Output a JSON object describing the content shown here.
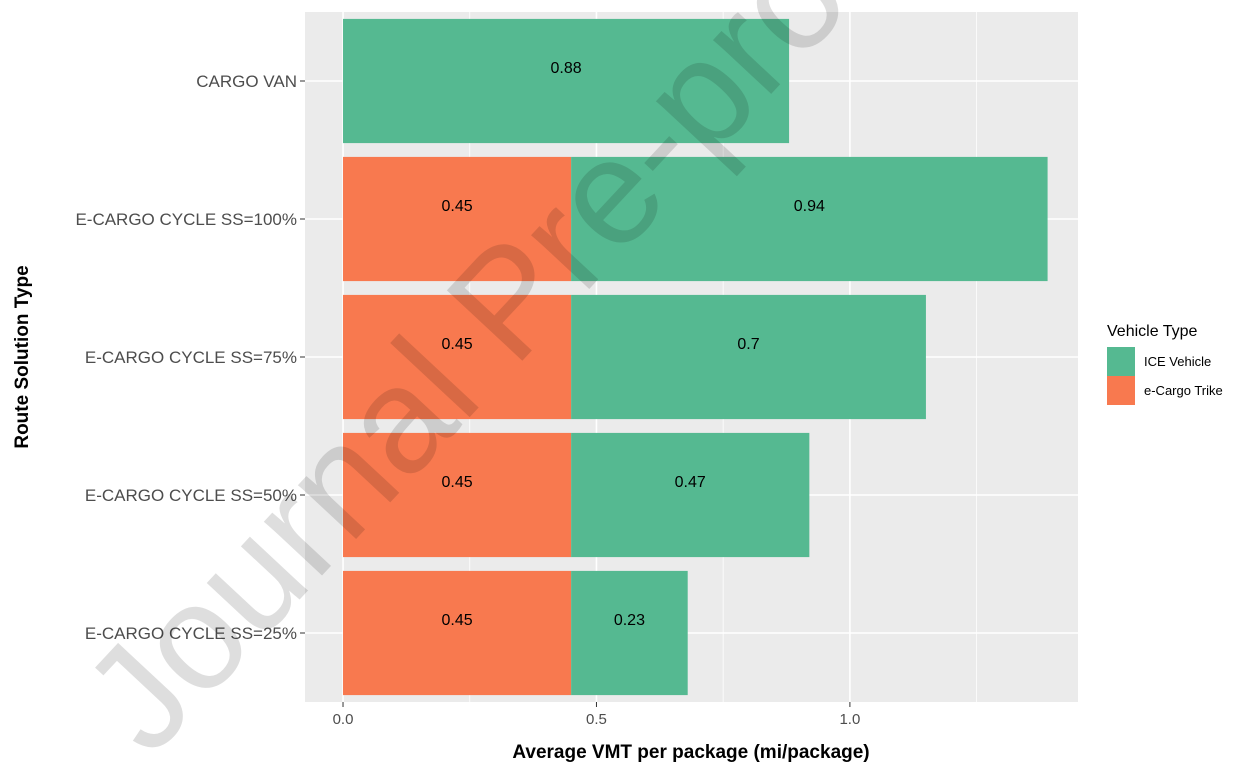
{
  "chart_data": {
    "type": "bar",
    "orientation": "horizontal",
    "stacked": true,
    "categories": [
      "CARGO VAN",
      "E-CARGO CYCLE SS=100%",
      "E-CARGO CYCLE SS=75%",
      "E-CARGO CYCLE SS=50%",
      "E-CARGO CYCLE SS=25%"
    ],
    "series": [
      {
        "name": "e-Cargo Trike",
        "color": "#F8794F",
        "values": [
          0,
          0.45,
          0.45,
          0.45,
          0.45
        ],
        "labels": [
          "",
          "0.45",
          "0.45",
          "0.45",
          "0.45"
        ]
      },
      {
        "name": "ICE Vehicle",
        "color": "#55B991",
        "values": [
          0.88,
          0.94,
          0.7,
          0.47,
          0.23
        ],
        "labels": [
          "0.88",
          "0.94",
          "0.7",
          "0.47",
          "0.23"
        ]
      }
    ],
    "xlabel": "Average VMT per package (mi/package)",
    "ylabel": "Route Solution Type",
    "xlim": [
      -0.075,
      1.45
    ],
    "xticks": [
      0.0,
      0.5,
      1.0
    ],
    "xtick_labels": [
      "0.0",
      "0.5",
      "1.0"
    ],
    "grid": true,
    "legend": {
      "title": "Vehicle Type",
      "position": "right",
      "entries": [
        {
          "label": "ICE Vehicle",
          "color": "#55B991"
        },
        {
          "label": "e-Cargo Trike",
          "color": "#F8794F"
        }
      ]
    },
    "watermark": "Journal Pre-proof"
  }
}
